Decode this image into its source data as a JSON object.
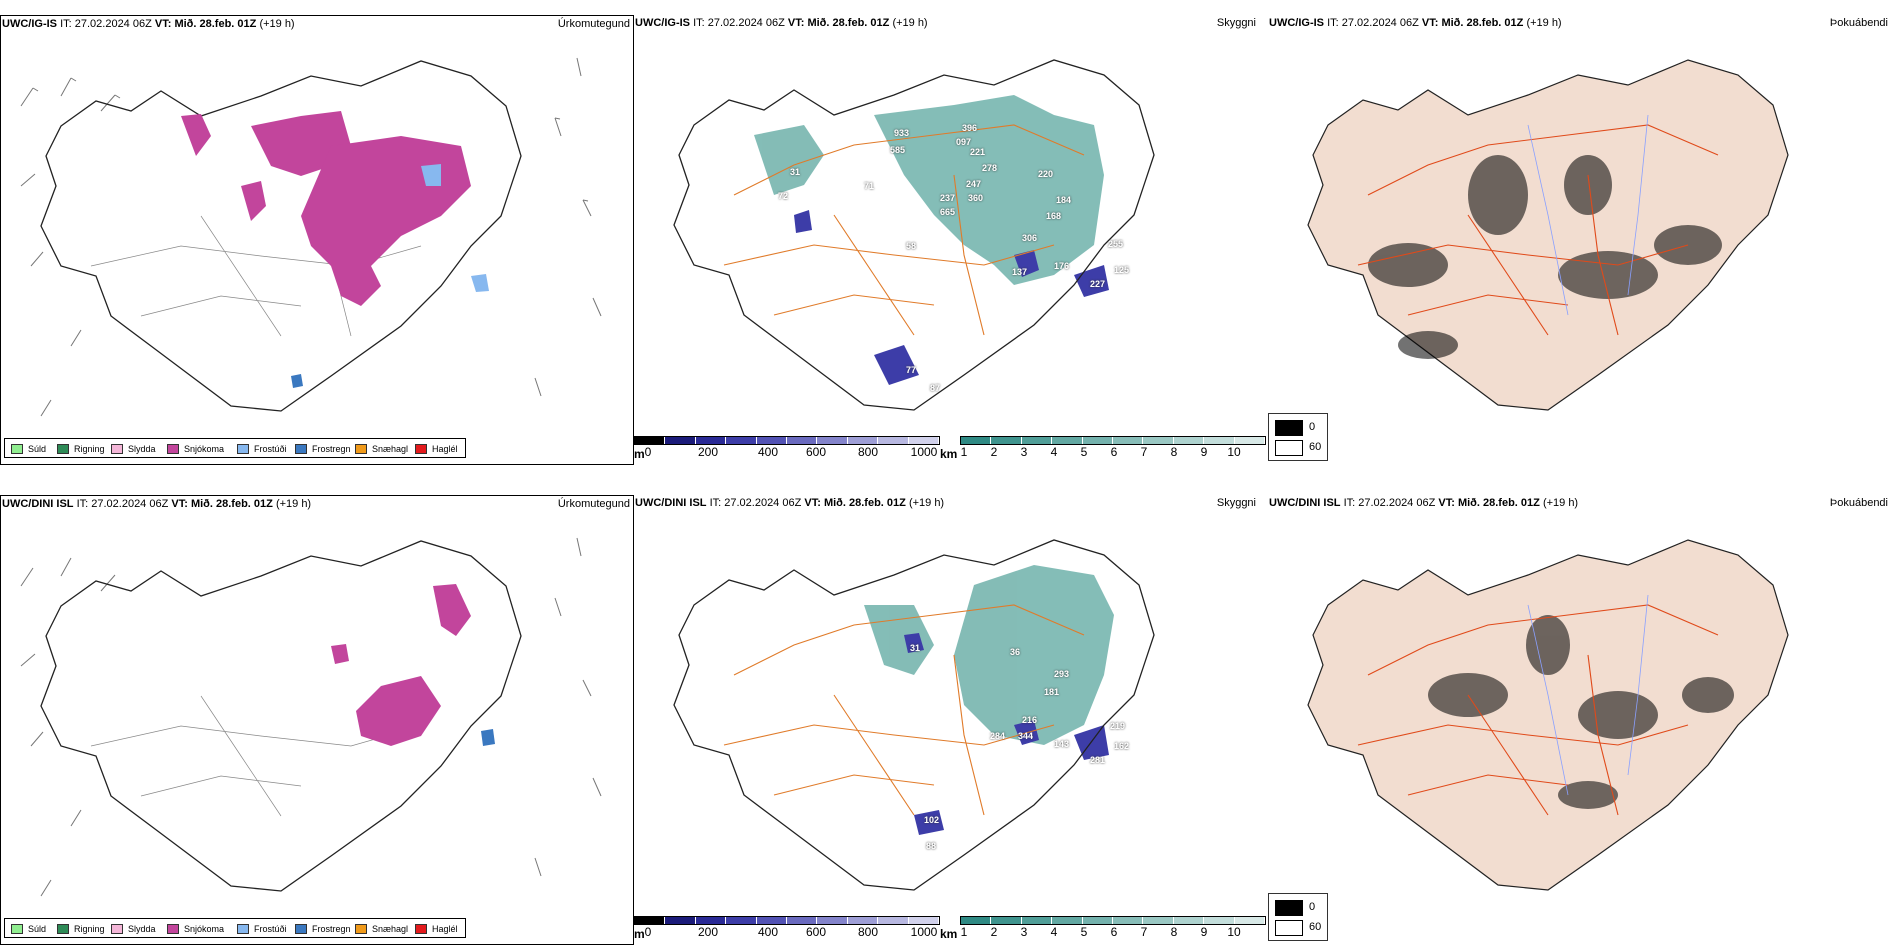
{
  "rows": [
    {
      "model": "UWC/IG-IS",
      "it_label": "IT:",
      "it_value": "27.02.2024 06Z",
      "vt_label": "VT:",
      "vt_value": "Mið. 28.feb. 01Z",
      "lead": "(+19 h)",
      "precip_title": "Úrkomutegund",
      "vis_title": "Skyggni",
      "fog_title": "Þokuábendi",
      "vis_labels": [
        "933",
        "396",
        "585",
        "097",
        "221",
        "278",
        "247",
        "220",
        "237",
        "360",
        "184",
        "665",
        "168",
        "306",
        "255",
        "137",
        "176",
        "125",
        "227",
        "77",
        "87",
        "72",
        "71",
        "58",
        "31"
      ]
    },
    {
      "model": "UWC/DINI ISL",
      "it_label": "IT:",
      "it_value": "27.02.2024 06Z",
      "vt_label": "VT:",
      "vt_value": "Mið. 28.feb. 01Z",
      "lead": "(+19 h)",
      "precip_title": "Úrkomutegund",
      "vis_title": "Skyggni",
      "fog_title": "Þokuábendi",
      "vis_labels": [
        "36",
        "293",
        "181",
        "216",
        "219",
        "284",
        "344",
        "143",
        "162",
        "281",
        "102",
        "88",
        "31"
      ]
    }
  ],
  "precip_legend": [
    {
      "label": "Súld",
      "color": "#90ee90"
    },
    {
      "label": "Rigning",
      "color": "#2e8b57"
    },
    {
      "label": "Slydda",
      "color": "#f4b6d8"
    },
    {
      "label": "Snjókoma",
      "color": "#c2459c"
    },
    {
      "label": "Frostúði",
      "color": "#87b8ef"
    },
    {
      "label": "Frostregn",
      "color": "#3a78c0"
    },
    {
      "label": "Snæhagl",
      "color": "#f09a1a"
    },
    {
      "label": "Haglél",
      "color": "#e31a1c"
    }
  ],
  "vis_scale_m": {
    "unit": "m",
    "ticks": [
      "0",
      "200",
      "400",
      "600",
      "800",
      "1000"
    ],
    "colors": [
      "#000000",
      "#1b1b7a",
      "#2a2a96",
      "#3d3da8",
      "#5252b4",
      "#6a6abf",
      "#8484cb",
      "#9e9ed6",
      "#b8b8e1",
      "#d2d2ec"
    ]
  },
  "vis_scale_km": {
    "unit": "km",
    "ticks": [
      "1",
      "2",
      "3",
      "4",
      "5",
      "6",
      "7",
      "8",
      "9",
      "10"
    ],
    "colors": [
      "#2f8a84",
      "#3f948e",
      "#509e98",
      "#62a8a2",
      "#74b2ad",
      "#87bdb8",
      "#9ac8c3",
      "#aed3cf",
      "#c3dedb",
      "#d8e9e7"
    ]
  },
  "fog_legend": [
    {
      "label": "0",
      "color": "#000000"
    },
    {
      "label": "60",
      "color": "#ffffff"
    }
  ]
}
